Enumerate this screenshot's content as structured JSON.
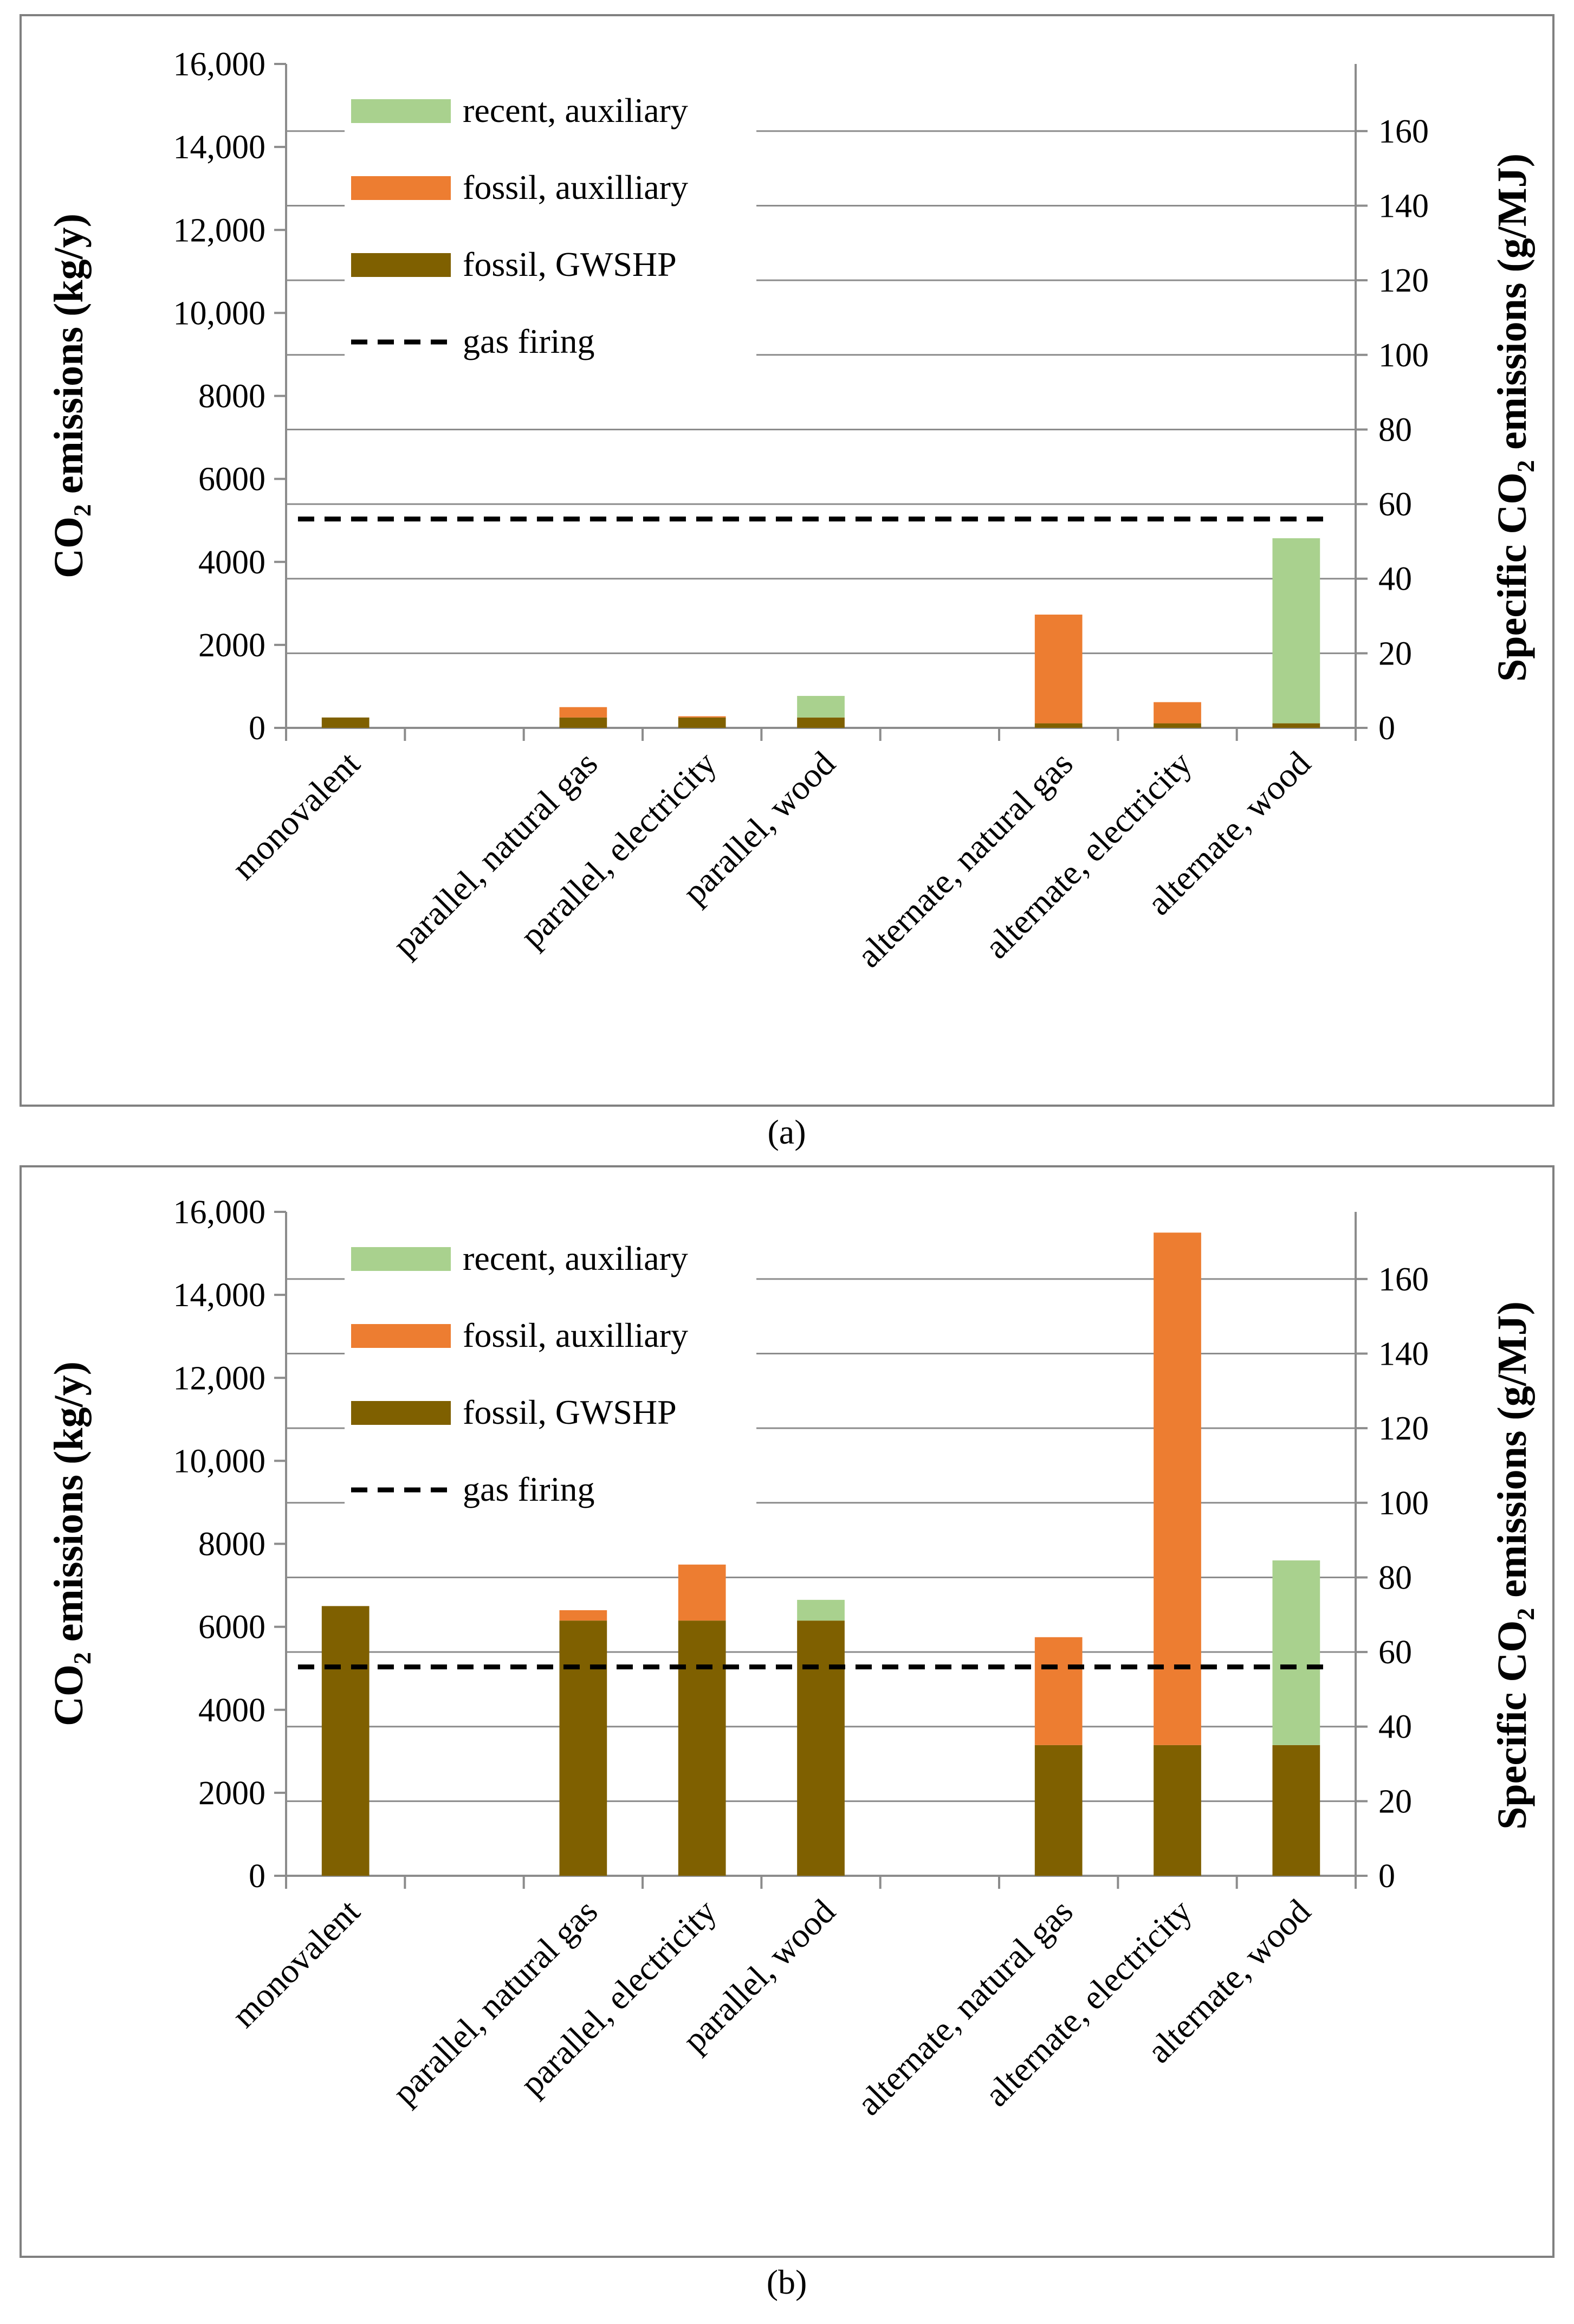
{
  "chart_data": [
    {
      "type": "bar",
      "stacked": true,
      "panel_label": "(a)",
      "categories": [
        "monovalent",
        "",
        "parallel, natural gas",
        "parallel, electricity",
        "parallel, wood",
        "",
        "alternate, natural gas",
        "alternate, electricity",
        "alternate, wood"
      ],
      "series": [
        {
          "name": "fossil, GWSHP",
          "color": "#7f6000",
          "values": [
            250,
            0,
            250,
            250,
            250,
            0,
            110,
            110,
            110
          ]
        },
        {
          "name": "fossil, auxilliary",
          "color": "#ed7d31",
          "values": [
            0,
            0,
            250,
            30,
            0,
            0,
            2620,
            510,
            0
          ]
        },
        {
          "name": "recent, auxiliary",
          "color": "#a9d18e",
          "values": [
            0,
            0,
            0,
            0,
            520,
            0,
            0,
            0,
            4460
          ]
        }
      ],
      "reference_line": {
        "name": "gas firing",
        "value": 56,
        "axis": "right",
        "style": "dashed",
        "color": "#000000"
      },
      "ylabel": "CO₂ emissions (kg/y)",
      "ylim": [
        0,
        16000
      ],
      "yticks": [
        "0",
        "2000",
        "4000",
        "6000",
        "8000",
        "10,000",
        "12,000",
        "14,000",
        "16,000"
      ],
      "y2label": "Specific CO₂ emissions (g/MJ)",
      "y2lim": [
        0,
        178
      ],
      "y2ticks": [
        "0",
        "20",
        "40",
        "60",
        "80",
        "100",
        "120",
        "140",
        "160"
      ],
      "xlabel": "",
      "legend_position": "top-left",
      "legend_order": [
        "recent, auxiliary",
        "fossil, auxilliary",
        "fossil, GWSHP",
        "gas firing"
      ],
      "grid": true
    },
    {
      "type": "bar",
      "stacked": true,
      "panel_label": "(b)",
      "categories": [
        "monovalent",
        "",
        "parallel, natural gas",
        "parallel, electricity",
        "parallel, wood",
        "",
        "alternate, natural gas",
        "alternate, electricity",
        "alternate, wood"
      ],
      "series": [
        {
          "name": "fossil, GWSHP",
          "color": "#7f6000",
          "values": [
            6500,
            0,
            6150,
            6150,
            6150,
            0,
            3150,
            3150,
            3150
          ]
        },
        {
          "name": "fossil, auxilliary",
          "color": "#ed7d31",
          "values": [
            0,
            0,
            250,
            1350,
            0,
            0,
            2600,
            12350,
            0
          ]
        },
        {
          "name": "recent, auxiliary",
          "color": "#a9d18e",
          "values": [
            0,
            0,
            0,
            0,
            500,
            0,
            0,
            0,
            4450
          ]
        }
      ],
      "reference_line": {
        "name": "gas firing",
        "value": 56,
        "axis": "right",
        "style": "dashed",
        "color": "#000000"
      },
      "ylabel": "CO₂ emissions (kg/y)",
      "ylim": [
        0,
        16000
      ],
      "yticks": [
        "0",
        "2000",
        "4000",
        "6000",
        "8000",
        "10,000",
        "12,000",
        "14,000",
        "16,000"
      ],
      "y2label": "Specific CO₂ emissions (g/MJ)",
      "y2lim": [
        0,
        178
      ],
      "y2ticks": [
        "0",
        "20",
        "40",
        "60",
        "80",
        "100",
        "120",
        "140",
        "160"
      ],
      "xlabel": "",
      "legend_position": "top-left",
      "legend_order": [
        "recent, auxiliary",
        "fossil, auxilliary",
        "fossil, GWSHP",
        "gas firing"
      ],
      "grid": true
    }
  ]
}
